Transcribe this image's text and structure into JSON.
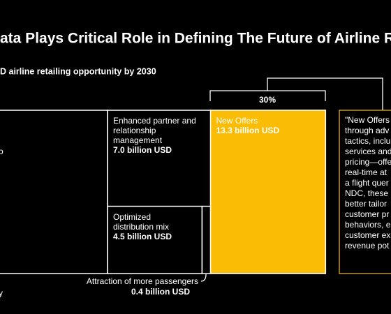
{
  "chart_data": {
    "type": "treemap",
    "title": "ata Plays Critical Role in Defining The Future of Airline Retailing",
    "subtitle": "D airline retailing opportunity by 2030",
    "categories": [
      [
        "New Offers"
      ],
      [
        "Enhanced partner and",
        "relationship",
        "management"
      ],
      [
        "Optimized",
        "distribution mix"
      ],
      [
        "Attraction of more passengers"
      ]
    ],
    "values": [
      13.3,
      7.0,
      4.5,
      0.4
    ],
    "value_labels": [
      "13.3 billion USD",
      "7.0 billion USD",
      "4.5 billion USD",
      "0.4 billion USD"
    ],
    "highlight_color": "#fbbc05",
    "share_label": "30%",
    "quote": [
      "\"New Offers",
      "through adv",
      "tactics, inclu",
      "services and",
      "pricing—offe",
      "real-time at",
      "a flight quer",
      "NDC, these",
      "better tailor",
      "customer pr",
      "behaviors, e",
      "customer ex",
      "revenue pot"
    ],
    "edge_fragments": [
      "o",
      "y"
    ]
  }
}
